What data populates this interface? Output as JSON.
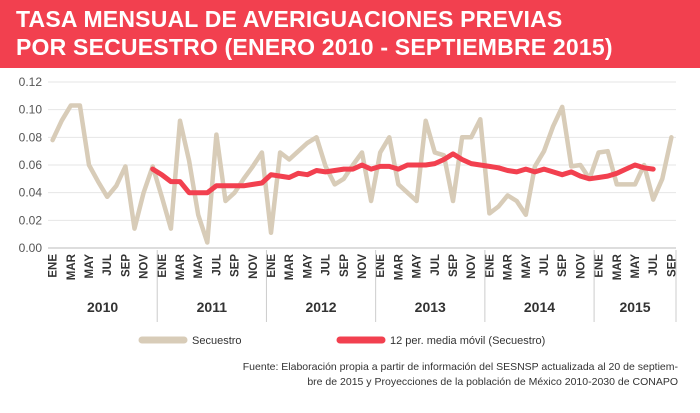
{
  "title_line1": "TASA MENSUAL DE AVERIGUACIONES PREVIAS",
  "title_line2": "POR SECUESTRO (ENERO 2010 - SEPTIEMBRE 2015)",
  "source_line1": "Fuente: Elaboración propia a partir de información del SESNSP actualizada al 20 de septiem-",
  "source_line2": "bre de 2015 y Proyecciones de la población de México 2010-2030 de CONAPO",
  "colors": {
    "title_bg": "#f2404f",
    "series_raw": "#d8ccb8",
    "series_ma": "#f2404f",
    "grid": "#e6e6e6"
  },
  "chart_data": {
    "type": "line",
    "title": "TASA MENSUAL DE AVERIGUACIONES PREVIAS POR SECUESTRO (ENERO 2010 - SEPTIEMBRE 2015)",
    "xlabel": "",
    "ylabel": "",
    "ylim": [
      0,
      0.12
    ],
    "yticks": [
      "0.00",
      "0.02",
      "0.04",
      "0.06",
      "0.08",
      "0.10",
      "0.12"
    ],
    "grid": true,
    "legend_position": "bottom-center",
    "month_ticks": [
      "ENE",
      "MAR",
      "MAY",
      "JUL",
      "SEP",
      "NOV"
    ],
    "month_tick_indices": [
      0,
      2,
      4,
      6,
      8,
      10
    ],
    "years": [
      "2010",
      "2011",
      "2012",
      "2013",
      "2014",
      "2015"
    ],
    "n_months": 69,
    "series": [
      {
        "name": "Secuestro",
        "start_index": 0,
        "values": [
          0.078,
          0.092,
          0.103,
          0.103,
          0.06,
          0.048,
          0.037,
          0.045,
          0.059,
          0.014,
          0.04,
          0.059,
          0.037,
          0.014,
          0.092,
          0.063,
          0.024,
          0.004,
          0.082,
          0.034,
          0.04,
          0.05,
          0.059,
          0.069,
          0.011,
          0.069,
          0.064,
          0.07,
          0.076,
          0.08,
          0.059,
          0.046,
          0.05,
          0.06,
          0.069,
          0.034,
          0.069,
          0.08,
          0.046,
          0.04,
          0.034,
          0.092,
          0.069,
          0.067,
          0.034,
          0.08,
          0.08,
          0.093,
          0.025,
          0.03,
          0.038,
          0.034,
          0.024,
          0.059,
          0.07,
          0.088,
          0.102,
          0.059,
          0.06,
          0.05,
          0.069,
          0.07,
          0.046,
          0.046,
          0.046,
          0.06,
          0.035,
          0.05,
          0.08
        ]
      },
      {
        "name": "12 per. media móvil (Secuestro)",
        "start_index": 11,
        "values": [
          0.057,
          0.053,
          0.048,
          0.048,
          0.04,
          0.04,
          0.04,
          0.045,
          0.045,
          0.045,
          0.045,
          0.046,
          0.047,
          0.053,
          0.052,
          0.051,
          0.054,
          0.053,
          0.056,
          0.055,
          0.056,
          0.057,
          0.057,
          0.06,
          0.057,
          0.059,
          0.059,
          0.057,
          0.06,
          0.06,
          0.06,
          0.061,
          0.064,
          0.068,
          0.064,
          0.061,
          0.06,
          0.059,
          0.058,
          0.056,
          0.055,
          0.057,
          0.055,
          0.057,
          0.055,
          0.053,
          0.055,
          0.052,
          0.05,
          0.051,
          0.052,
          0.054,
          0.057,
          0.06,
          0.058,
          0.057
        ]
      }
    ]
  }
}
